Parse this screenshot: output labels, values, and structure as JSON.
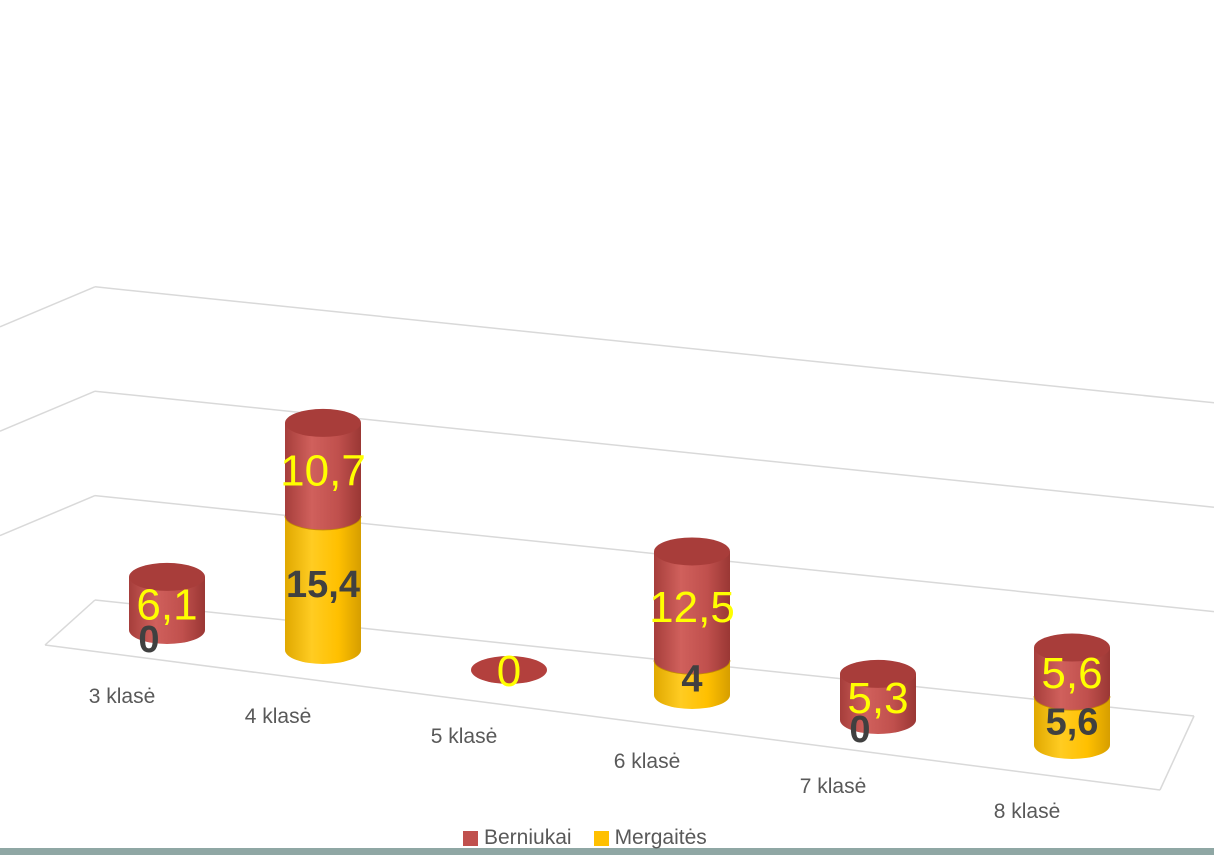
{
  "colors": {
    "berniukai": "#c0504d",
    "mergaites": "#ffc000",
    "label_yellow": "#ffff00",
    "label_dark": "#404040",
    "category_text": "#595959"
  },
  "chart_data": {
    "type": "bar",
    "style": "3d-cylinder-stacked",
    "title": "",
    "xlabel": "",
    "ylabel": "",
    "categories": [
      "3 klasė",
      "4 klasė",
      "5 klasė",
      "6 klasė",
      "7 klasė",
      "8 klasė"
    ],
    "series": [
      {
        "name": "Mergaitės",
        "values": [
          0,
          15.4,
          0,
          4,
          0,
          5.6
        ]
      },
      {
        "name": "Berniukai",
        "values": [
          6.1,
          10.7,
          0,
          12.5,
          5.3,
          5.6
        ]
      }
    ],
    "data_labels": {
      "mergaites": [
        "0",
        "15,4",
        "",
        "4",
        "0",
        "5,6"
      ],
      "berniukai": [
        "6,1",
        "10,7",
        "0",
        "12,5",
        "5,3",
        "5,6"
      ]
    },
    "ylim": [
      0,
      36
    ],
    "grid": true,
    "legend_position": "bottom"
  },
  "legend": {
    "berniukai_label": "Berniukai",
    "mergaites_label": "Mergaitės"
  }
}
